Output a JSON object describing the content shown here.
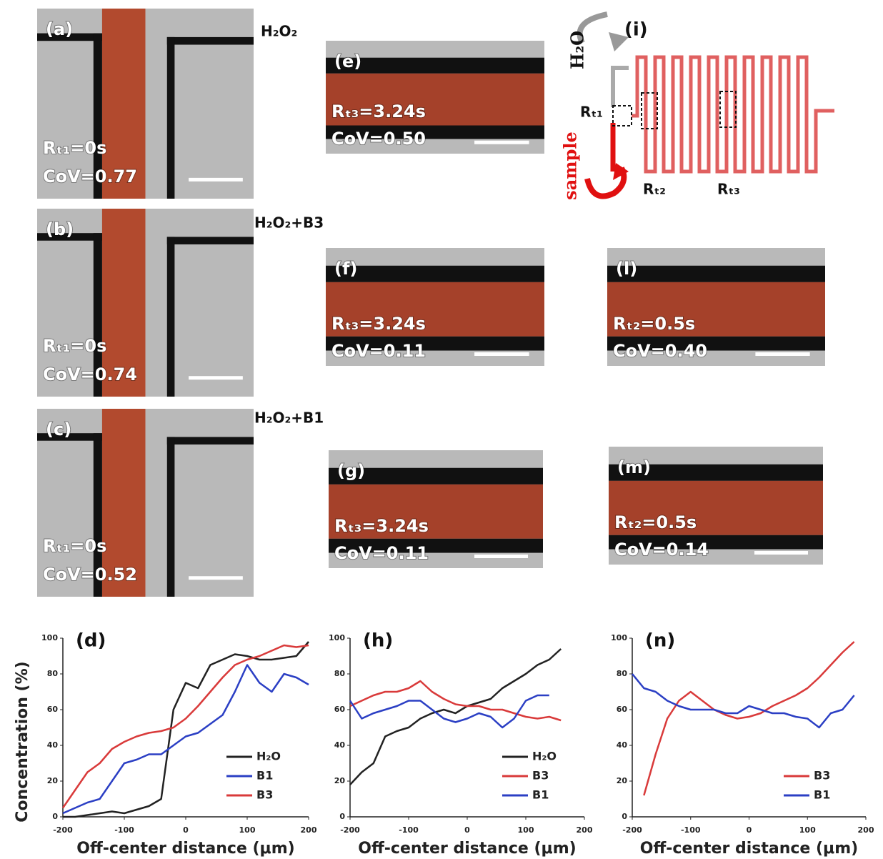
{
  "conditions": [
    "H₂O₂",
    "H₂O₂+B3",
    "H₂O₂+B1"
  ],
  "panels": [
    {
      "label": "(a)",
      "rt": "Rₜ₁=0s",
      "cov": "CoV=0.77"
    },
    {
      "label": "(b)",
      "rt": "Rₜ₁=0s",
      "cov": "CoV=0.74"
    },
    {
      "label": "(c)",
      "rt": "Rₜ₁=0s",
      "cov": "CoV=0.52"
    },
    {
      "label": "(e)",
      "rt": "Rₜ₃=3.24s",
      "cov": "CoV=0.50"
    },
    {
      "label": "(f)",
      "rt": "Rₜ₃=3.24s",
      "cov": "CoV=0.11"
    },
    {
      "label": "(g)",
      "rt": "Rₜ₃=3.24s",
      "cov": "CoV=0.11"
    },
    {
      "label": "(l)",
      "rt": "Rₜ₂=0.5s",
      "cov": "CoV=0.40"
    },
    {
      "label": "(m)",
      "rt": "Rₜ₂=0.5s",
      "cov": "CoV=0.14"
    }
  ],
  "schematic": {
    "label": "(i)",
    "water": "H₂O",
    "sample": "sample",
    "rt1": "Rₜ₁",
    "rt2": "Rₜ₂",
    "rt3": "Rₜ₃"
  },
  "chart_data": [
    {
      "type": "line",
      "panel": "(d)",
      "xlabel": "Off-center distance (μm)",
      "ylabel": "Concentration (%)",
      "x": [
        -200,
        -180,
        -160,
        -140,
        -120,
        -100,
        -80,
        -60,
        -40,
        -20,
        0,
        20,
        40,
        60,
        80,
        100,
        120,
        140,
        160,
        180,
        200
      ],
      "xlim": [
        -200,
        200
      ],
      "xticks": [
        -200,
        -100,
        0,
        100,
        200
      ],
      "ylim": [
        0,
        100
      ],
      "yticks": [
        0,
        20,
        40,
        60,
        80,
        100
      ],
      "legend": "lower right",
      "series": [
        {
          "name": "H₂O",
          "color": "#222222",
          "values": [
            0,
            0,
            1,
            2,
            3,
            2,
            4,
            6,
            10,
            60,
            75,
            72,
            85,
            88,
            91,
            90,
            88,
            88,
            89,
            90,
            98
          ]
        },
        {
          "name": "B1",
          "color": "#2b3fc4",
          "values": [
            2,
            5,
            8,
            10,
            20,
            30,
            32,
            35,
            35,
            40,
            45,
            47,
            52,
            57,
            70,
            85,
            75,
            70,
            80,
            78,
            74
          ]
        },
        {
          "name": "B3",
          "color": "#d93a3a",
          "values": [
            5,
            15,
            25,
            30,
            38,
            42,
            45,
            47,
            48,
            50,
            55,
            62,
            70,
            78,
            85,
            88,
            90,
            93,
            96,
            95,
            96
          ]
        }
      ]
    },
    {
      "type": "line",
      "panel": "(h)",
      "xlabel": "Off-center distance (μm)",
      "x": [
        -200,
        -180,
        -160,
        -140,
        -120,
        -100,
        -80,
        -60,
        -40,
        -20,
        0,
        20,
        40,
        60,
        80,
        100,
        120,
        140,
        160
      ],
      "xlim": [
        -200,
        200
      ],
      "xticks": [
        -200,
        -100,
        0,
        100,
        200
      ],
      "ylim": [
        0,
        100
      ],
      "yticks": [
        0,
        20,
        40,
        60,
        80,
        100
      ],
      "legend": "lower right",
      "series": [
        {
          "name": "H₂O",
          "color": "#222222",
          "values": [
            18,
            25,
            30,
            45,
            48,
            50,
            55,
            58,
            60,
            58,
            62,
            64,
            66,
            72,
            76,
            80,
            85,
            88,
            94
          ]
        },
        {
          "name": "B3",
          "color": "#d93a3a",
          "values": [
            62,
            65,
            68,
            70,
            70,
            72,
            76,
            70,
            66,
            63,
            62,
            62,
            60,
            60,
            58,
            56,
            55,
            56,
            54
          ]
        },
        {
          "name": "B1",
          "color": "#2b3fc4",
          "values": [
            65,
            55,
            58,
            60,
            62,
            65,
            65,
            60,
            55,
            53,
            55,
            58,
            56,
            50,
            55,
            65,
            68,
            68,
            null
          ]
        }
      ]
    },
    {
      "type": "line",
      "panel": "(n)",
      "xlabel": "Off-center distance (μm)",
      "x": [
        -200,
        -180,
        -160,
        -140,
        -120,
        -100,
        -80,
        -60,
        -40,
        -20,
        0,
        20,
        40,
        60,
        80,
        100,
        120,
        140,
        160,
        180
      ],
      "xlim": [
        -200,
        200
      ],
      "xticks": [
        -200,
        -100,
        0,
        100,
        200
      ],
      "ylim": [
        0,
        100
      ],
      "yticks": [
        0,
        20,
        40,
        60,
        80,
        100
      ],
      "legend": "lower right",
      "series": [
        {
          "name": "B3",
          "color": "#d93a3a",
          "values": [
            null,
            12,
            35,
            55,
            65,
            70,
            65,
            60,
            57,
            55,
            56,
            58,
            62,
            65,
            68,
            72,
            78,
            85,
            92,
            98
          ]
        },
        {
          "name": "B1",
          "color": "#2b3fc4",
          "values": [
            80,
            72,
            70,
            65,
            62,
            60,
            60,
            60,
            58,
            58,
            62,
            60,
            58,
            58,
            56,
            55,
            50,
            58,
            60,
            68
          ]
        }
      ]
    }
  ]
}
